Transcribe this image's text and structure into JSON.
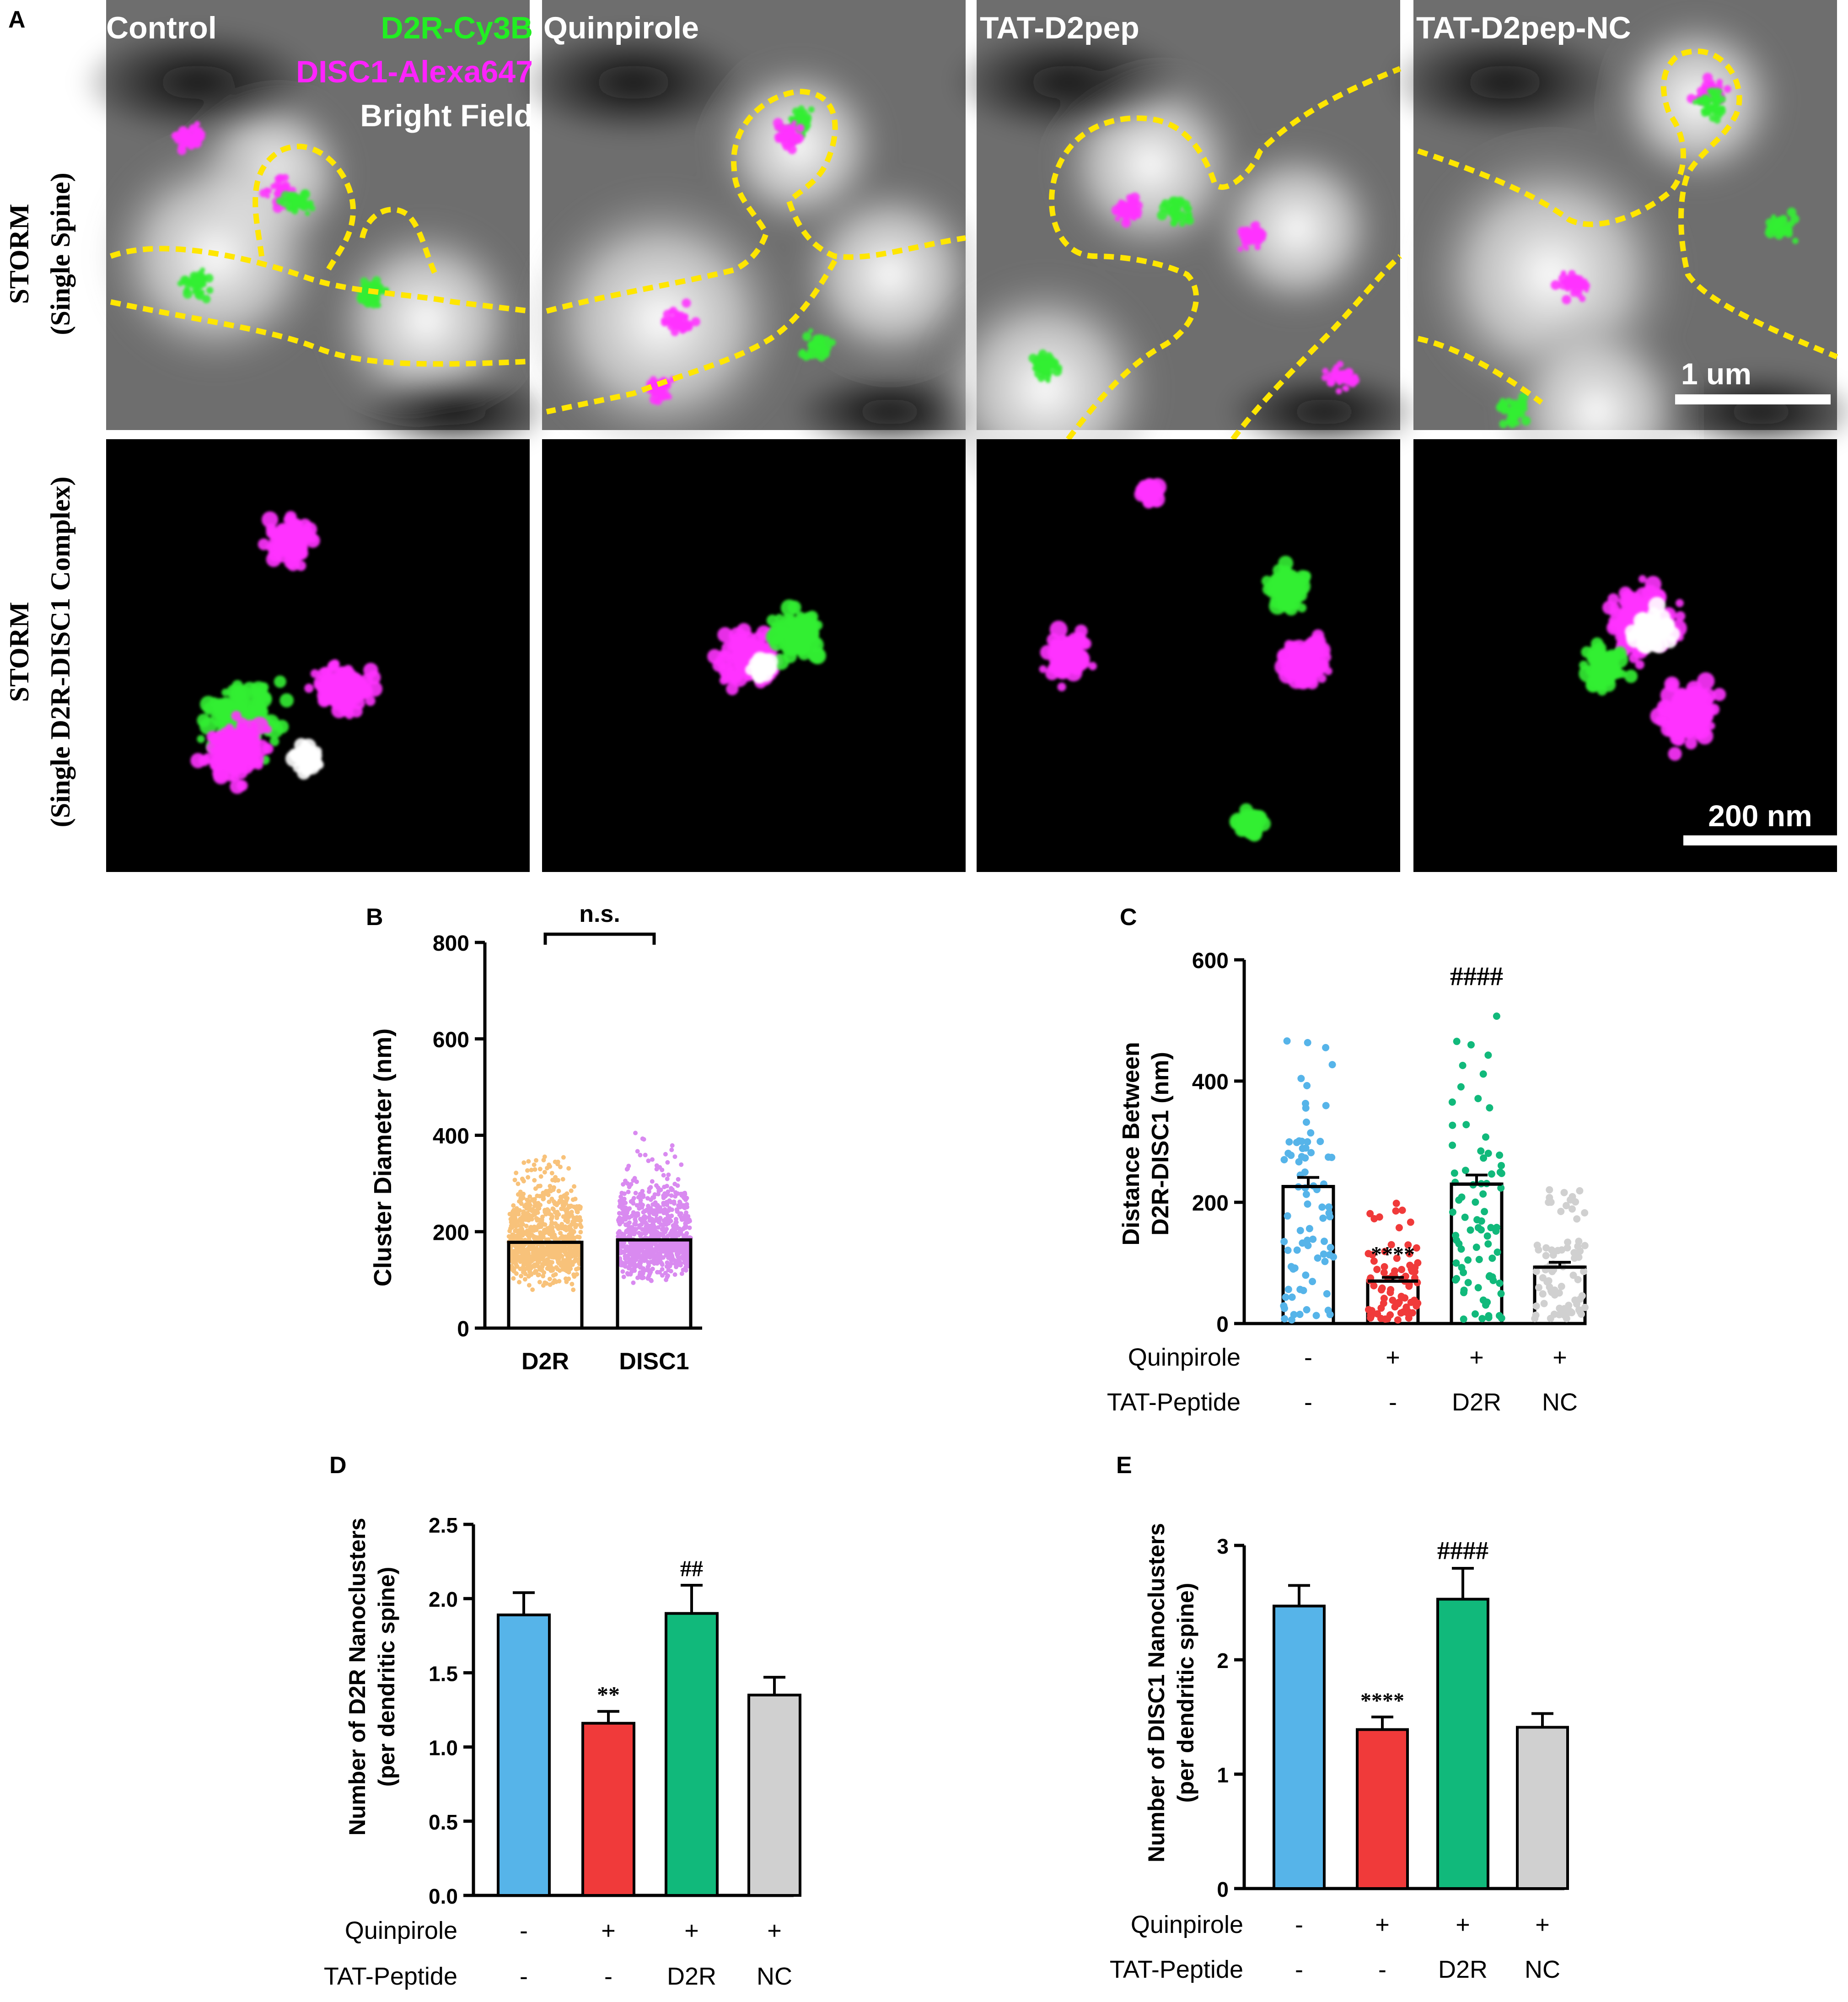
{
  "panel_a": {
    "letter": "A",
    "row_labels": [
      {
        "line1": "STORM",
        "line2": "(Single Spine)"
      },
      {
        "line1": "STORM",
        "line2": "(Single D2R-DISC1 Complex)"
      }
    ],
    "columns": [
      "Control",
      "Quinpirole",
      "TAT-D2pep",
      "TAT-D2pep-NC"
    ],
    "legend": [
      {
        "label": "D2R-Cy3B",
        "color": "#22ee22"
      },
      {
        "label": "DISC1-Alexa647",
        "color": "#ff22ff"
      },
      {
        "label": "Bright Field",
        "color": "#ffffff"
      }
    ],
    "scalebar_top": "1 um",
    "scalebar_bottom": "200 nm",
    "outline_color": "#ffe600"
  },
  "colors": {
    "blue": "#56b4e9",
    "red": "#f03a3a",
    "green": "#11b97b",
    "grey": "#d0d0d0",
    "orange": "#f8c27a",
    "violet": "#d98af0"
  },
  "chart_data": [
    {
      "id": "B",
      "type": "bar",
      "letter": "B",
      "ylabel": "Cluster Diameter (nm)",
      "ylim": [
        0,
        800
      ],
      "yticks": [
        "0",
        "200",
        "400",
        "600",
        "800"
      ],
      "categories": [
        "D2R",
        "DISC1"
      ],
      "values": [
        178,
        183
      ],
      "scatter_color": [
        "#f8c27a",
        "#d98af0"
      ],
      "significance": "n.s."
    },
    {
      "id": "C",
      "type": "bar",
      "letter": "C",
      "ylabel_line1": "Distance Between",
      "ylabel_line2": "D2R-DISC1 (nm)",
      "ylim": [
        0,
        600
      ],
      "yticks": [
        "0",
        "200",
        "400",
        "600"
      ],
      "values": [
        226,
        70,
        230,
        93
      ],
      "errors": [
        15,
        6,
        15,
        8
      ],
      "colors": [
        "#56b4e9",
        "#f03a3a",
        "#11b97b",
        "#d0d0d0"
      ],
      "annotations": [
        "",
        "****",
        "####",
        ""
      ],
      "rows": [
        {
          "label": "Quinpirole",
          "values": [
            "-",
            "+",
            "+",
            "+"
          ]
        },
        {
          "label": "TAT-Peptide",
          "values": [
            "-",
            "-",
            "D2R",
            "NC"
          ]
        }
      ]
    },
    {
      "id": "D",
      "type": "bar",
      "letter": "D",
      "ylabel_line1": "Number of D2R Nanoclusters",
      "ylabel_line2": "(per dendritic spine)",
      "ylim": [
        0,
        2.5
      ],
      "yticks": [
        "0.0",
        "0.5",
        "1.0",
        "1.5",
        "2.0",
        "2.5"
      ],
      "values": [
        1.89,
        1.16,
        1.9,
        1.35
      ],
      "errors": [
        0.15,
        0.08,
        0.19,
        0.12
      ],
      "colors": [
        "#56b4e9",
        "#f03a3a",
        "#11b97b",
        "#d0d0d0"
      ],
      "annotations": [
        "",
        "**",
        "##",
        ""
      ],
      "rows": [
        {
          "label": "Quinpirole",
          "values": [
            "-",
            "+",
            "+",
            "+"
          ]
        },
        {
          "label": "TAT-Peptide",
          "values": [
            "-",
            "-",
            "D2R",
            "NC"
          ]
        }
      ]
    },
    {
      "id": "E",
      "type": "bar",
      "letter": "E",
      "ylabel_line1": "Number of DISC1 Nanoclusters",
      "ylabel_line2": "(per dendritic spine)",
      "ylim": [
        0,
        3
      ],
      "yticks": [
        "0",
        "1",
        "2",
        "3"
      ],
      "values": [
        2.47,
        1.39,
        2.53,
        1.41
      ],
      "errors": [
        0.18,
        0.11,
        0.27,
        0.12
      ],
      "colors": [
        "#56b4e9",
        "#f03a3a",
        "#11b97b",
        "#d0d0d0"
      ],
      "annotations": [
        "",
        "****",
        "####",
        ""
      ],
      "rows": [
        {
          "label": "Quinpirole",
          "values": [
            "-",
            "+",
            "+",
            "+"
          ]
        },
        {
          "label": "TAT-Peptide",
          "values": [
            "-",
            "-",
            "D2R",
            "NC"
          ]
        }
      ]
    }
  ]
}
